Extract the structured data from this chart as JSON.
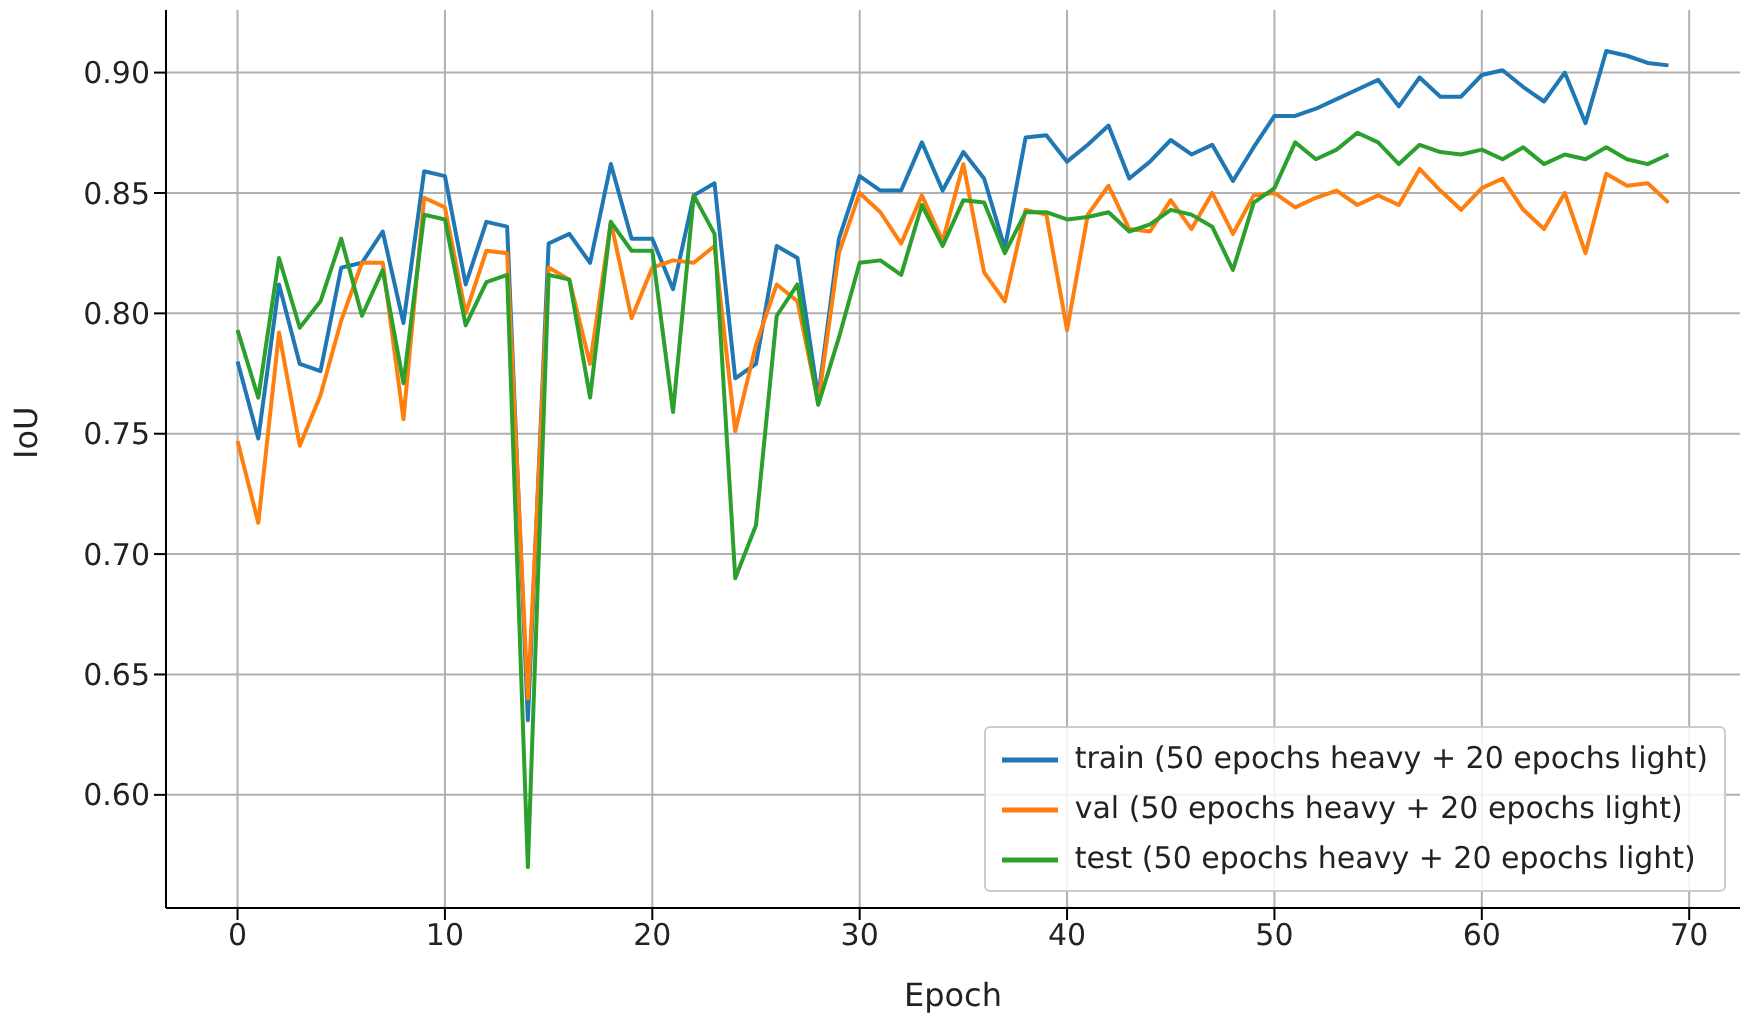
{
  "chart_data": {
    "type": "line",
    "xlabel": "Epoch",
    "ylabel": "IoU",
    "x": [
      0,
      1,
      2,
      3,
      4,
      5,
      6,
      7,
      8,
      9,
      10,
      11,
      12,
      13,
      14,
      15,
      16,
      17,
      18,
      19,
      20,
      21,
      22,
      23,
      24,
      25,
      26,
      27,
      28,
      29,
      30,
      31,
      32,
      33,
      34,
      35,
      36,
      37,
      38,
      39,
      40,
      41,
      42,
      43,
      44,
      45,
      46,
      47,
      48,
      49,
      50,
      51,
      52,
      53,
      54,
      55,
      56,
      57,
      58,
      59,
      60,
      61,
      62,
      63,
      64,
      65,
      66,
      67,
      68,
      69
    ],
    "xlim": [
      -3.45,
      72.45
    ],
    "xticks": [
      0,
      10,
      20,
      30,
      40,
      50,
      60,
      70
    ],
    "ylim": [
      0.553,
      0.926
    ],
    "yticks": [
      {
        "value": 0.6,
        "label": "0.60"
      },
      0.65,
      {
        "value": 0.7,
        "label": "0.70"
      },
      0.75,
      {
        "value": 0.8,
        "label": "0.80"
      },
      0.85,
      {
        "value": 0.9,
        "label": "0.90"
      }
    ],
    "grid": true,
    "legend": "bottom right",
    "line_style": "solid",
    "series": [
      {
        "name": "train (50 epochs heavy + 20 epochs light)",
        "color": "#1f77b4",
        "values": [
          0.78,
          0.748,
          0.812,
          0.779,
          0.776,
          0.819,
          0.821,
          0.834,
          0.796,
          0.859,
          0.857,
          0.812,
          0.838,
          0.836,
          0.631,
          0.829,
          0.833,
          0.821,
          0.862,
          0.831,
          0.831,
          0.81,
          0.849,
          0.854,
          0.773,
          0.779,
          0.828,
          0.823,
          0.765,
          0.831,
          0.857,
          0.851,
          0.851,
          0.871,
          0.851,
          0.867,
          0.856,
          0.827,
          0.873,
          0.874,
          0.863,
          0.87,
          0.878,
          0.856,
          0.863,
          0.872,
          0.866,
          0.87,
          0.855,
          0.869,
          0.882,
          0.882,
          0.885,
          0.889,
          0.893,
          0.897,
          0.886,
          0.898,
          0.89,
          0.89,
          0.899,
          0.901,
          0.894,
          0.888,
          0.9,
          0.879,
          0.909,
          0.907,
          0.904,
          0.903
        ]
      },
      {
        "name": "val (50 epochs heavy + 20 epochs light)",
        "color": "#ff7f0e",
        "values": [
          0.747,
          0.713,
          0.792,
          0.745,
          0.766,
          0.797,
          0.821,
          0.821,
          0.756,
          0.848,
          0.844,
          0.8,
          0.826,
          0.825,
          0.64,
          0.819,
          0.814,
          0.779,
          0.838,
          0.798,
          0.819,
          0.822,
          0.821,
          0.828,
          0.751,
          0.787,
          0.812,
          0.805,
          0.763,
          0.825,
          0.85,
          0.842,
          0.829,
          0.849,
          0.83,
          0.862,
          0.817,
          0.805,
          0.843,
          0.841,
          0.793,
          0.841,
          0.853,
          0.835,
          0.834,
          0.847,
          0.835,
          0.85,
          0.833,
          0.849,
          0.85,
          0.844,
          0.848,
          0.851,
          0.845,
          0.849,
          0.845,
          0.86,
          0.851,
          0.843,
          0.852,
          0.856,
          0.843,
          0.835,
          0.85,
          0.825,
          0.858,
          0.853,
          0.854,
          0.846
        ]
      },
      {
        "name": "test (50 epochs heavy + 20 epochs light)",
        "color": "#2ca02c",
        "values": [
          0.793,
          0.765,
          0.823,
          0.794,
          0.805,
          0.831,
          0.799,
          0.818,
          0.771,
          0.841,
          0.839,
          0.795,
          0.813,
          0.816,
          0.57,
          0.816,
          0.814,
          0.765,
          0.838,
          0.826,
          0.826,
          0.759,
          0.849,
          0.833,
          0.69,
          0.712,
          0.799,
          0.812,
          0.762,
          0.79,
          0.821,
          0.822,
          0.816,
          0.845,
          0.828,
          0.847,
          0.846,
          0.825,
          0.842,
          0.842,
          0.839,
          0.84,
          0.842,
          0.834,
          0.837,
          0.843,
          0.841,
          0.836,
          0.818,
          0.846,
          0.852,
          0.871,
          0.864,
          0.868,
          0.875,
          0.871,
          0.862,
          0.87,
          0.867,
          0.866,
          0.868,
          0.864,
          0.869,
          0.862,
          0.866,
          0.864,
          0.869,
          0.864,
          0.862,
          0.866
        ]
      }
    ]
  }
}
